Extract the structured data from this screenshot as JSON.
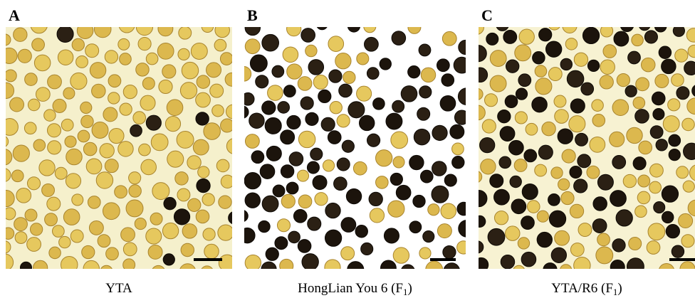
{
  "panels": [
    {
      "label": "A",
      "caption": "YTA"
    },
    {
      "label": "B",
      "caption": "HongLian You 6 (F",
      "caption_sub": "1",
      "caption_end": ")"
    },
    {
      "label": "C",
      "caption": "YTA/R6 (F",
      "caption_sub": "1",
      "caption_end": ")"
    }
  ]
}
